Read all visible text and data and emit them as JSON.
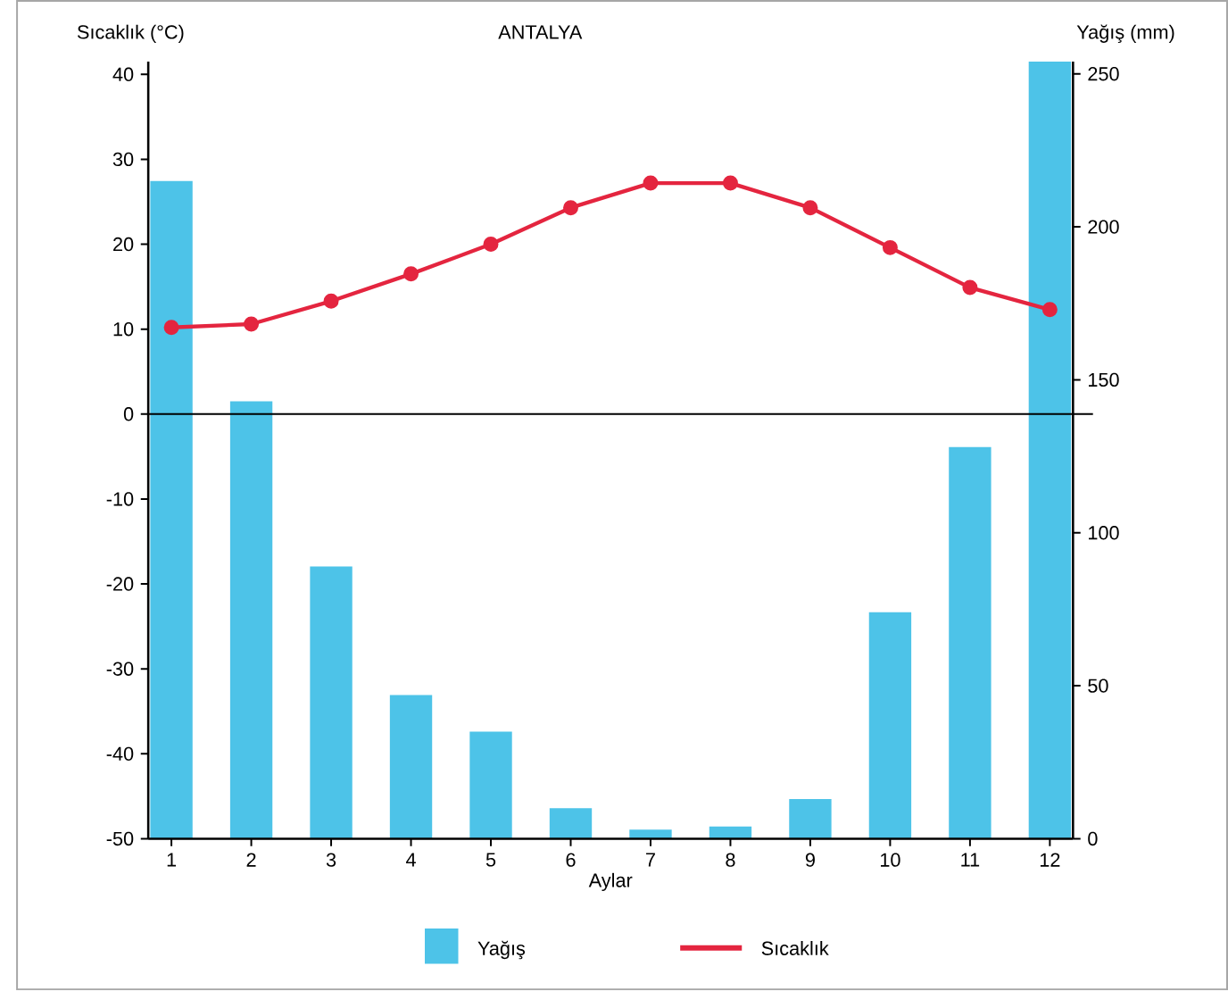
{
  "chart_data": {
    "type": "bar",
    "title": "ANTALYA",
    "xlabel": "Aylar",
    "ylabel": "Sıcaklık (°C)",
    "y2label": "Yağış (mm)",
    "categories": [
      "1",
      "2",
      "3",
      "4",
      "5",
      "6",
      "7",
      "8",
      "9",
      "10",
      "11",
      "12"
    ],
    "series": [
      {
        "name": "Yağış",
        "axis": "y2",
        "color": "#4dc3e8",
        "values": [
          215,
          143,
          89,
          47,
          35,
          10,
          3,
          4,
          13,
          74,
          128,
          254
        ]
      },
      {
        "name": "Sıcaklık",
        "type": "line",
        "color": "#e4253f",
        "values": [
          10.2,
          10.6,
          13.3,
          16.5,
          20.0,
          24.3,
          27.2,
          27.2,
          24.3,
          19.6,
          14.9,
          12.3
        ]
      }
    ],
    "ylim": [
      -50,
      41.5
    ],
    "yticks": [
      -50,
      -40,
      -30,
      -20,
      -10,
      0,
      10,
      20,
      30,
      40
    ],
    "y2lim": [
      0,
      254
    ],
    "y2ticks": [
      0,
      50,
      100,
      150,
      200,
      250
    ],
    "ref_lines": [
      {
        "axis": "y",
        "value": 0,
        "color": "#000000"
      }
    ],
    "legend": "bottom",
    "marker": "circle",
    "line_style": "solid"
  }
}
